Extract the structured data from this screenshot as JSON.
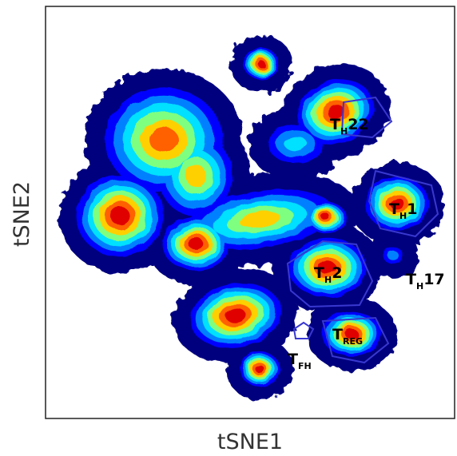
{
  "chart_data": {
    "type": "density",
    "plot_kind": "tSNE density contour plot",
    "xlabel": "tSNE1",
    "ylabel": "tSNE2",
    "colormap": [
      "#00007f",
      "#0000ff",
      "#0080ff",
      "#00e0ff",
      "#7fff7f",
      "#ffd000",
      "#ff6000",
      "#e00000"
    ],
    "gate_color": "#3838d0",
    "gated_populations": [
      {
        "id": "th22",
        "main": "T",
        "sub": "H",
        "suffix": "22"
      },
      {
        "id": "th1",
        "main": "T",
        "sub": "H",
        "suffix": "1"
      },
      {
        "id": "th2",
        "main": "T",
        "sub": "H",
        "suffix": "2"
      },
      {
        "id": "th17",
        "main": "T",
        "sub": "H",
        "suffix": "17"
      },
      {
        "id": "treg",
        "main": "T",
        "sub": "REG",
        "suffix": ""
      },
      {
        "id": "tfh",
        "main": "T",
        "sub": "FH",
        "suffix": ""
      }
    ]
  }
}
